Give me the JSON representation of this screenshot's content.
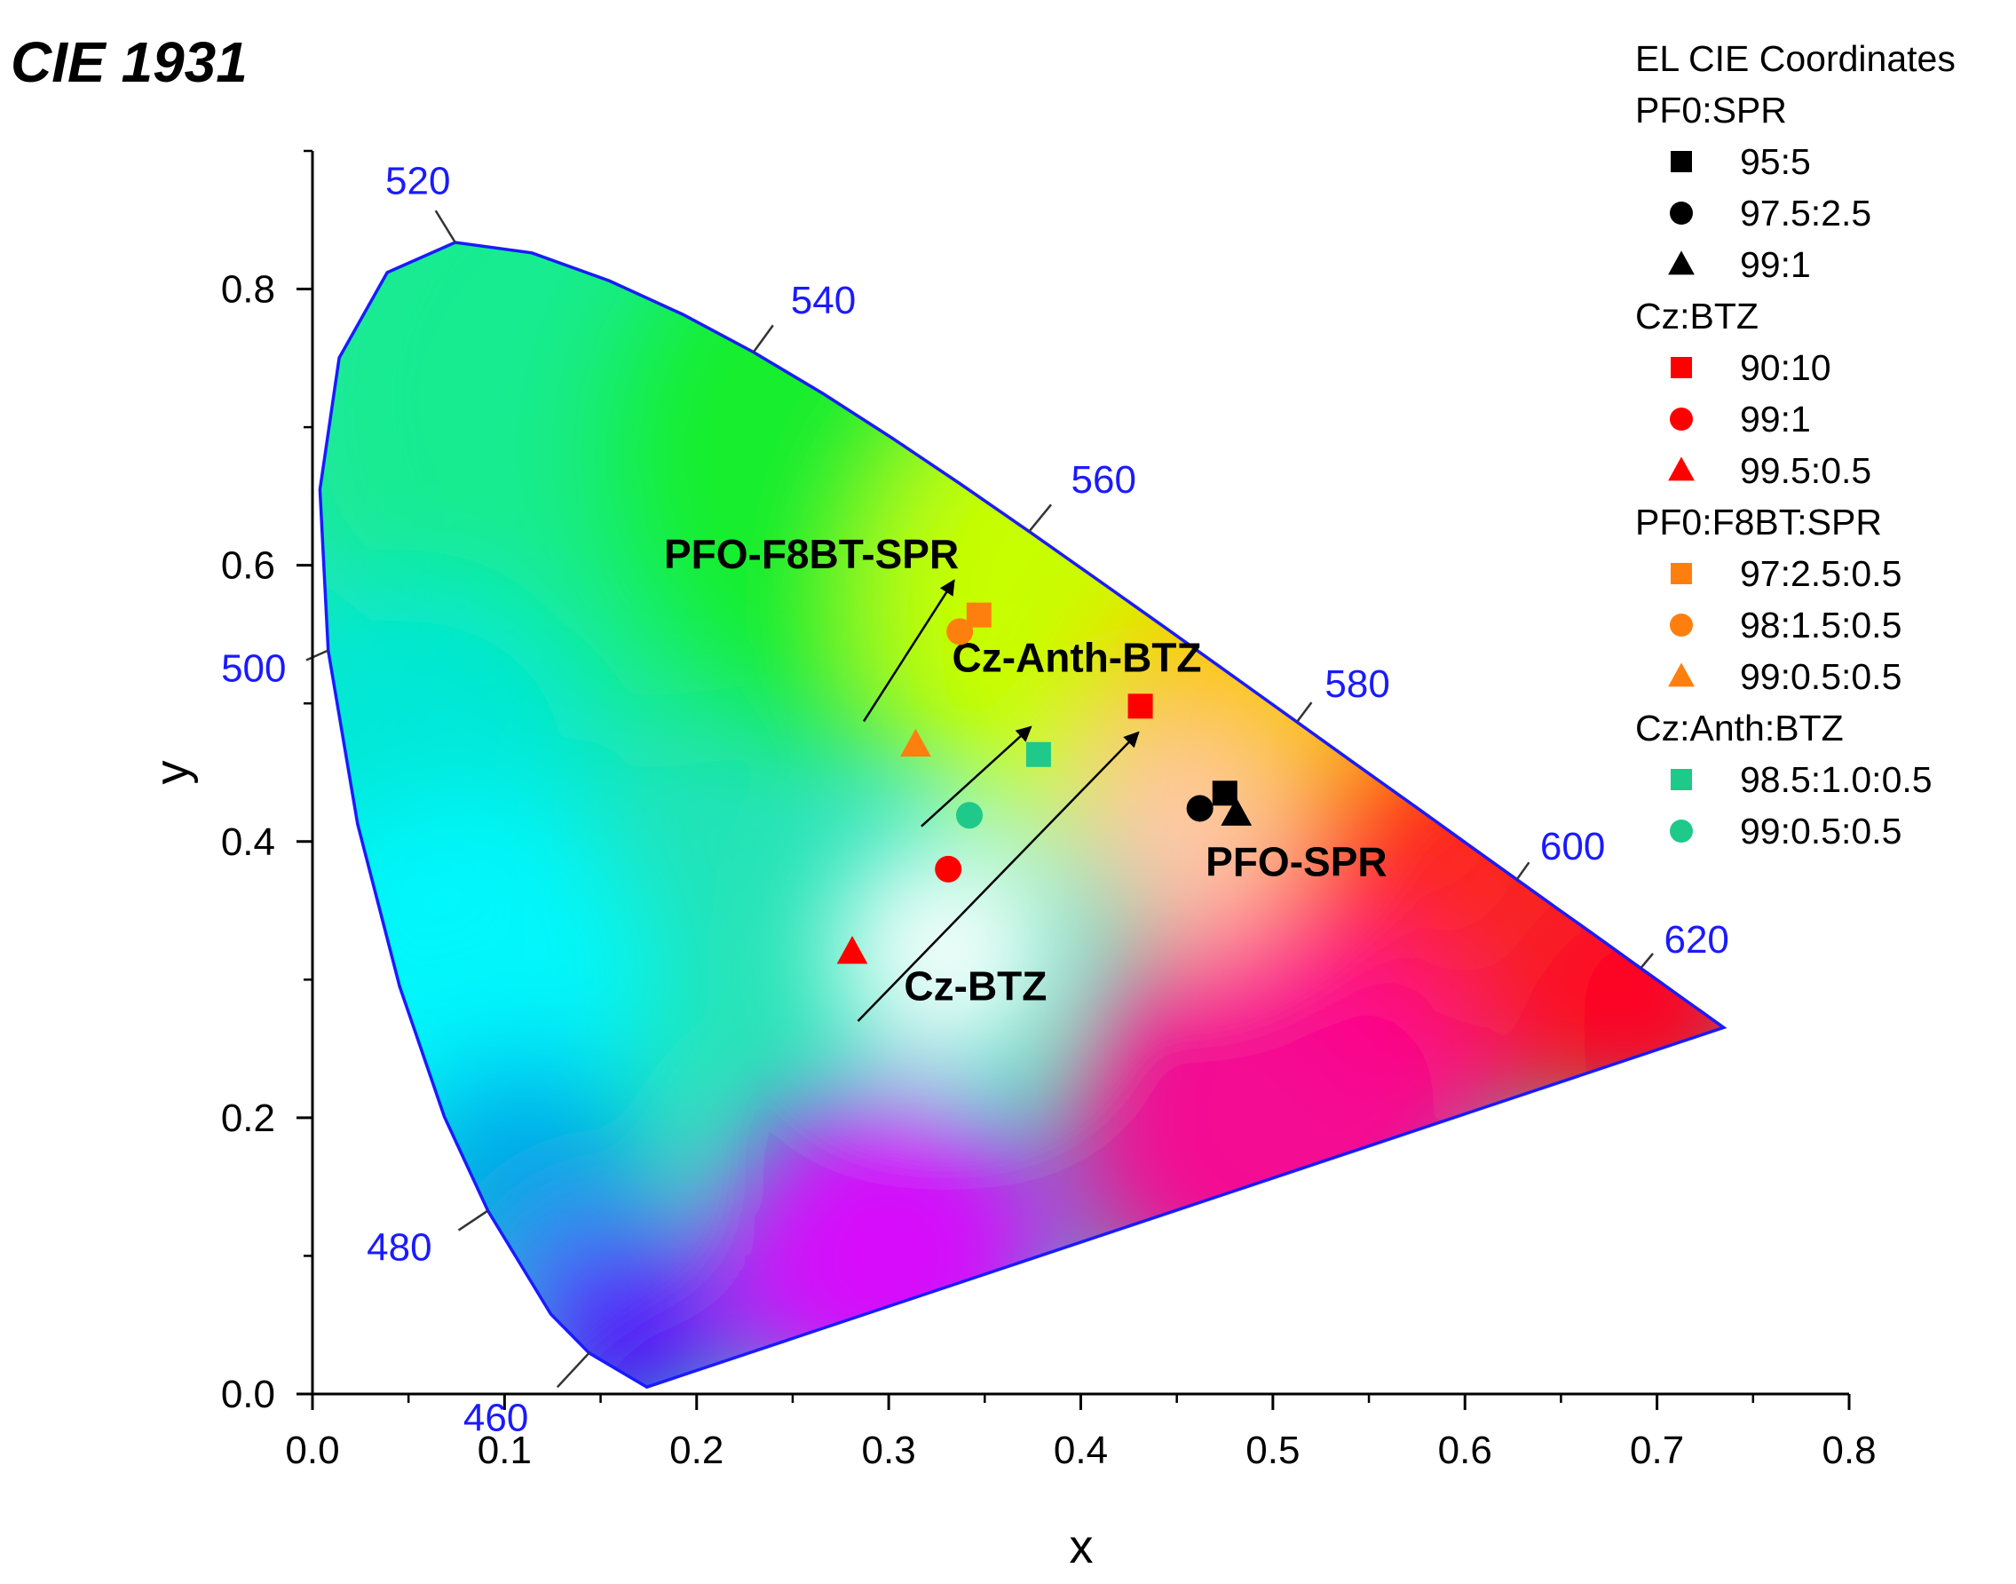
{
  "chart_data": {
    "type": "scatter",
    "title": "CIE 1931",
    "xlabel": "x",
    "ylabel": "y",
    "xlim": [
      0.0,
      0.8
    ],
    "ylim": [
      0.0,
      0.9
    ],
    "x_ticks": [
      "0.0",
      "0.1",
      "0.2",
      "0.3",
      "0.4",
      "0.5",
      "0.6",
      "0.7",
      "0.8"
    ],
    "y_ticks": [
      "0.0",
      "0.2",
      "0.4",
      "0.6",
      "0.8"
    ],
    "grid": false,
    "legend_position": "top-right",
    "legend_title": "EL CIE Coordinates",
    "locus": [
      [
        0.1741,
        0.005
      ],
      [
        0.144,
        0.0297
      ],
      [
        0.1241,
        0.0578
      ],
      [
        0.0913,
        0.1327
      ],
      [
        0.0687,
        0.2007
      ],
      [
        0.0454,
        0.295
      ],
      [
        0.0235,
        0.4127
      ],
      [
        0.0082,
        0.5384
      ],
      [
        0.0039,
        0.6548
      ],
      [
        0.0139,
        0.7502
      ],
      [
        0.0389,
        0.812
      ],
      [
        0.0743,
        0.8338
      ],
      [
        0.1142,
        0.8262
      ],
      [
        0.1547,
        0.8059
      ],
      [
        0.1929,
        0.7816
      ],
      [
        0.2296,
        0.7543
      ],
      [
        0.2658,
        0.7243
      ],
      [
        0.3016,
        0.6923
      ],
      [
        0.3373,
        0.6589
      ],
      [
        0.3731,
        0.6245
      ],
      [
        0.4087,
        0.5896
      ],
      [
        0.4441,
        0.5547
      ],
      [
        0.4788,
        0.5202
      ],
      [
        0.5125,
        0.4866
      ],
      [
        0.5448,
        0.4544
      ],
      [
        0.5752,
        0.4242
      ],
      [
        0.6029,
        0.3965
      ],
      [
        0.627,
        0.3725
      ],
      [
        0.6482,
        0.3514
      ],
      [
        0.6658,
        0.334
      ],
      [
        0.6801,
        0.3197
      ],
      [
        0.6915,
        0.3083
      ],
      [
        0.7006,
        0.2993
      ],
      [
        0.7079,
        0.292
      ],
      [
        0.714,
        0.2859
      ],
      [
        0.719,
        0.2809
      ],
      [
        0.723,
        0.277
      ],
      [
        0.726,
        0.274
      ],
      [
        0.7347,
        0.2653
      ]
    ],
    "wavelength_labels": [
      {
        "label": "460",
        "x": 0.144,
        "y": 0.0297
      },
      {
        "label": "480",
        "x": 0.0913,
        "y": 0.1327
      },
      {
        "label": "500",
        "x": 0.0082,
        "y": 0.5384
      },
      {
        "label": "520",
        "x": 0.0743,
        "y": 0.8338
      },
      {
        "label": "540",
        "x": 0.2296,
        "y": 0.7543
      },
      {
        "label": "560",
        "x": 0.3731,
        "y": 0.6245
      },
      {
        "label": "580",
        "x": 0.5125,
        "y": 0.4866
      },
      {
        "label": "600",
        "x": 0.627,
        "y": 0.3725
      },
      {
        "label": "620",
        "x": 0.6915,
        "y": 0.3083
      }
    ],
    "groups": [
      {
        "name": "PF0:SPR",
        "color": "#000000",
        "series": [
          {
            "name": "95:5",
            "marker": "square",
            "x": 0.475,
            "y": 0.435
          },
          {
            "name": "97.5:2.5",
            "marker": "circle",
            "x": 0.462,
            "y": 0.424
          },
          {
            "name": "99:1",
            "marker": "triangle",
            "x": 0.481,
            "y": 0.42
          }
        ]
      },
      {
        "name": "Cz:BTZ",
        "color": "#ff0000",
        "series": [
          {
            "name": "90:10",
            "marker": "square",
            "x": 0.431,
            "y": 0.498
          },
          {
            "name": "99:1",
            "marker": "circle",
            "x": 0.331,
            "y": 0.38
          },
          {
            "name": "99.5:0.5",
            "marker": "triangle",
            "x": 0.281,
            "y": 0.32
          }
        ]
      },
      {
        "name": "PF0:F8BT:SPR",
        "color": "#ff7f0e",
        "series": [
          {
            "name": "97:2.5:0.5",
            "marker": "square",
            "x": 0.347,
            "y": 0.564
          },
          {
            "name": "98:1.5:0.5",
            "marker": "circle",
            "x": 0.337,
            "y": 0.552
          },
          {
            "name": "99:0.5:0.5",
            "marker": "triangle",
            "x": 0.314,
            "y": 0.47
          }
        ]
      },
      {
        "name": "Cz:Anth:BTZ",
        "color": "#1fc98a",
        "series": [
          {
            "name": "98.5:1.0:0.5",
            "marker": "square",
            "x": 0.378,
            "y": 0.463
          },
          {
            "name": "99:0.5:0.5",
            "marker": "circle",
            "x": 0.342,
            "y": 0.419
          }
        ]
      }
    ],
    "annotations": [
      {
        "text": "PFO-F8BT-SPR",
        "x": 0.183,
        "y": 0.598
      },
      {
        "text": "Cz-Anth-BTZ",
        "x": 0.333,
        "y": 0.523
      },
      {
        "text": "PFO-SPR",
        "x": 0.465,
        "y": 0.375
      },
      {
        "text": "Cz-BTZ",
        "x": 0.308,
        "y": 0.285
      }
    ],
    "arrows": [
      {
        "from": [
          0.287,
          0.487
        ],
        "to": [
          0.334,
          0.589
        ]
      },
      {
        "from": [
          0.317,
          0.411
        ],
        "to": [
          0.374,
          0.483
        ]
      },
      {
        "from": [
          0.284,
          0.27
        ],
        "to": [
          0.43,
          0.479
        ]
      }
    ]
  }
}
